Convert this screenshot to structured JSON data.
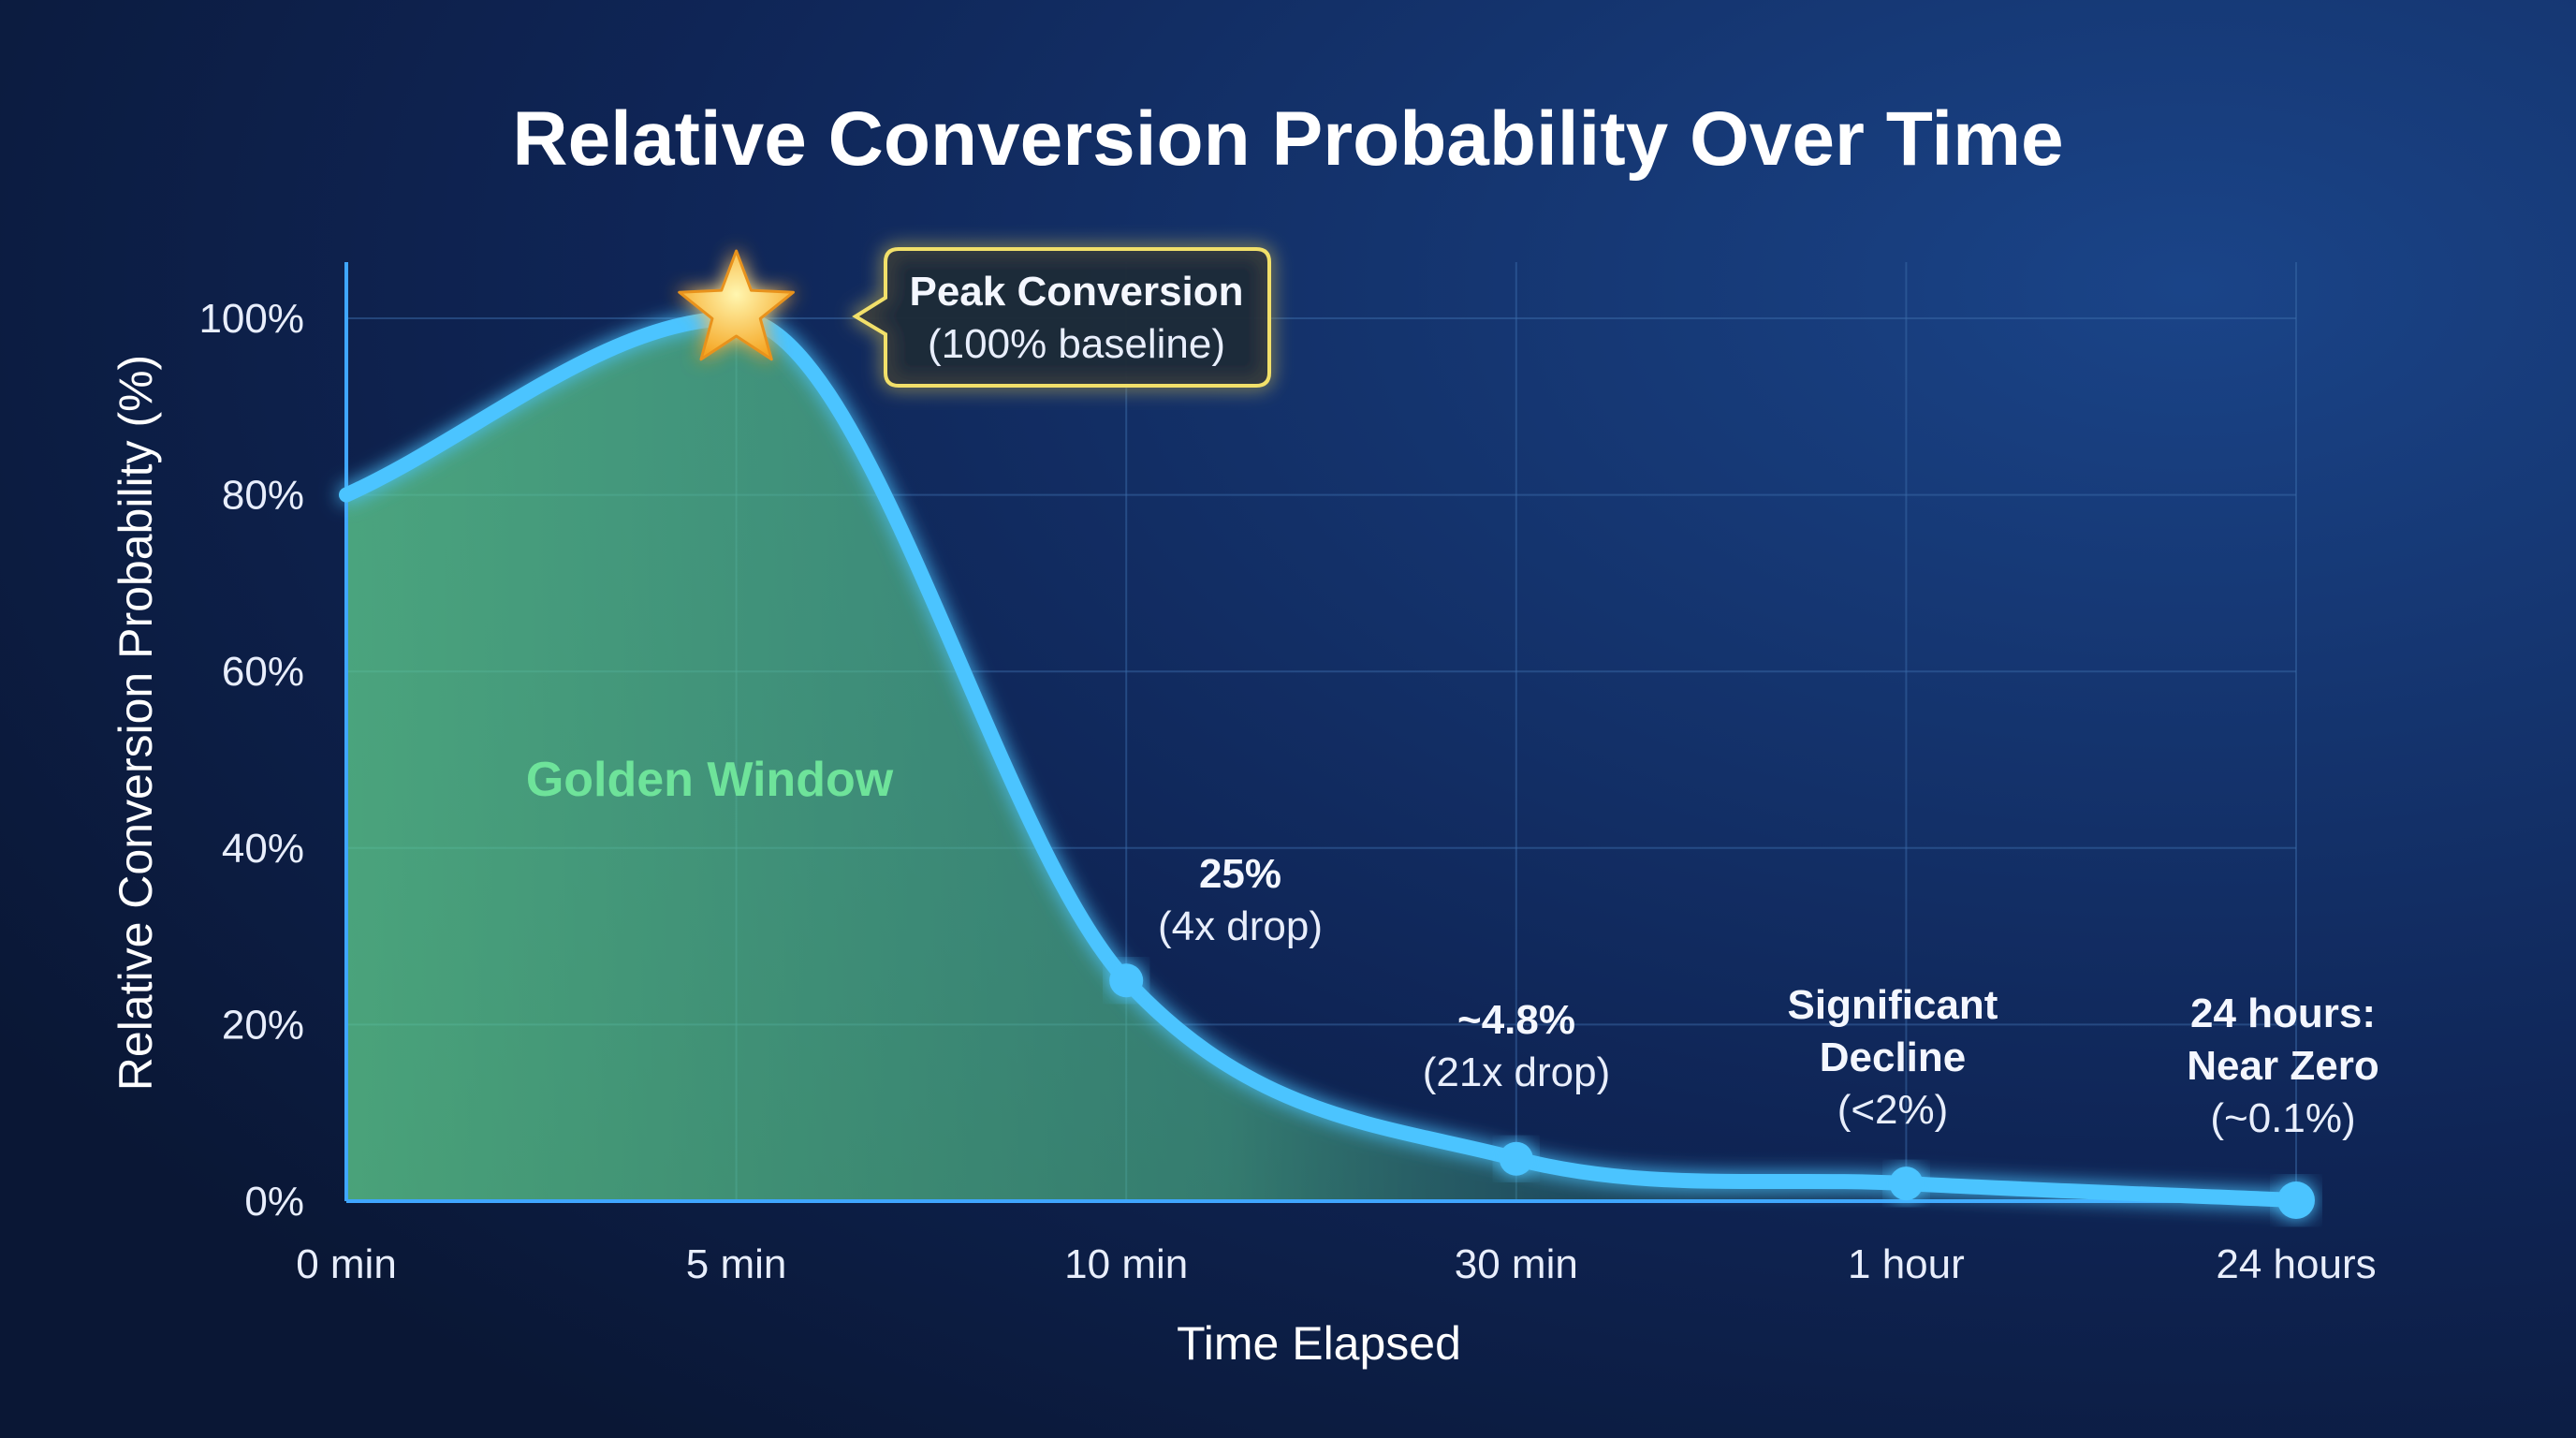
{
  "chart_data": {
    "type": "line",
    "title": "Relative Conversion Probability Over Time",
    "xlabel": "Time Elapsed",
    "ylabel": "Relative Conversion Probability (%)",
    "categories": [
      "0 min",
      "5 min",
      "10 min",
      "30 min",
      "1 hour",
      "24 hours"
    ],
    "values": [
      80,
      100,
      25,
      4.8,
      2,
      0.1
    ],
    "ylim": [
      0,
      100
    ],
    "yticks": [
      "0%",
      "20%",
      "40%",
      "60%",
      "80%",
      "100%"
    ],
    "grid": true,
    "annotations": {
      "peak": {
        "line1": "Peak Conversion",
        "line2": "(100% baseline)"
      },
      "golden_window": "Golden Window",
      "ten_min": {
        "line1": "25%",
        "line2": "(4x drop)"
      },
      "thirty_min": {
        "line1": "~4.8%",
        "line2": "(21x drop)"
      },
      "one_hour": {
        "line1": "Significant",
        "line2": "Decline",
        "line3": "(<2%)"
      },
      "day": {
        "line1": "24 hours:",
        "line2": "Near Zero",
        "line3": "(~0.1%)"
      }
    },
    "colors": {
      "line": "#4cc4ff",
      "fill": "#5fd08f",
      "star": "#ffc83a",
      "callout_border": "#f2e06a",
      "golden_window": "#6ee39a",
      "background": "#0b1a3c"
    }
  }
}
